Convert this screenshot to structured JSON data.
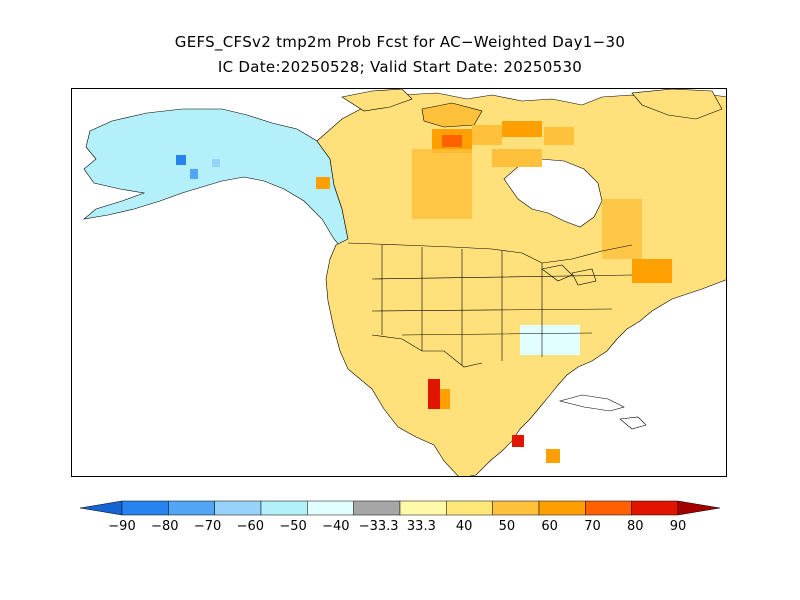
{
  "title": {
    "line1": "GEFS_CFSv2 tmp2m Prob Fcst for AC−Weighted Day1−30",
    "line2": "IC Date:20250528; Valid Start Date: 20250530"
  },
  "legend": {
    "labels": [
      "−90",
      "−80",
      "−70",
      "−60",
      "−50",
      "−40",
      "−33.3",
      "33.3",
      "40",
      "50",
      "60",
      "70",
      "80",
      "90"
    ],
    "colors": [
      "#1464d2",
      "#2882f0",
      "#50a5f5",
      "#96d2fa",
      "#b4f0fa",
      "#e1ffff",
      "#a6a6a6",
      "#fffaaa",
      "#ffe878",
      "#ffc03c",
      "#ffa000",
      "#ff6000",
      "#e11400",
      "#a50000"
    ],
    "placement": "bottom"
  }
}
